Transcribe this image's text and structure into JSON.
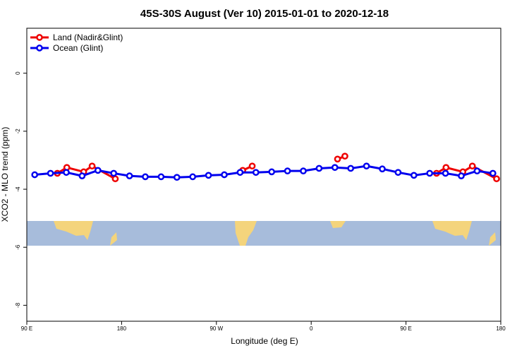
{
  "chart_data": {
    "type": "line",
    "title": "45S-30S August (Ver 10)   2015-01-01 to 2020-12-18",
    "x_label": "Longitude (deg E)",
    "y_label": "XCO2 - MLO trend (ppm)",
    "xlim": [
      90,
      540
    ],
    "xticks": [
      {
        "value": 90,
        "label": "90 E"
      },
      180,
      {
        "value": 270,
        "label": "90 W"
      },
      {
        "value": 360,
        "label": "0"
      },
      {
        "value": 450,
        "label": "90 E"
      },
      {
        "value": 540,
        "label": "180"
      }
    ],
    "ylim": [
      -8.55,
      1.55
    ],
    "yticks": [
      -8,
      -6,
      -4,
      -2,
      0
    ],
    "legend": "top-left",
    "series": [
      {
        "name": "Land (Nadir&Glint)",
        "color": "#ee0000",
        "x": [
          119,
          128,
          144,
          152,
          174,
          null,
          295,
          304,
          null,
          385,
          392,
          null,
          479,
          488,
          504,
          513,
          536
        ],
        "values": [
          -3.45,
          -3.25,
          -3.4,
          -3.2,
          -3.64,
          null,
          -3.35,
          -3.2,
          null,
          -2.96,
          -2.86,
          null,
          -3.45,
          -3.25,
          -3.4,
          -3.2,
          -3.64
        ]
      },
      {
        "name": "Ocean (Glint)",
        "color": "#0000ee",
        "x": [
          97.5,
          112.5,
          127.5,
          142.5,
          157.5,
          172.5,
          187.5,
          202.5,
          217.5,
          232.5,
          247.5,
          262.5,
          277.5,
          292.5,
          307.5,
          322.5,
          337.5,
          352.5,
          367.5,
          382.5,
          397.5,
          412.5,
          427.5,
          442.5,
          457.5,
          472.5,
          487.5,
          502.5,
          517.5,
          532.5
        ],
        "values": [
          -3.5,
          -3.45,
          -3.42,
          -3.54,
          -3.35,
          -3.45,
          -3.54,
          -3.57,
          -3.57,
          -3.59,
          -3.57,
          -3.52,
          -3.5,
          -3.42,
          -3.42,
          -3.4,
          -3.37,
          -3.37,
          -3.28,
          -3.25,
          -3.28,
          -3.2,
          -3.3,
          -3.42,
          -3.52,
          -3.45,
          -3.45,
          -3.54,
          -3.37,
          -3.45
        ]
      }
    ]
  }
}
